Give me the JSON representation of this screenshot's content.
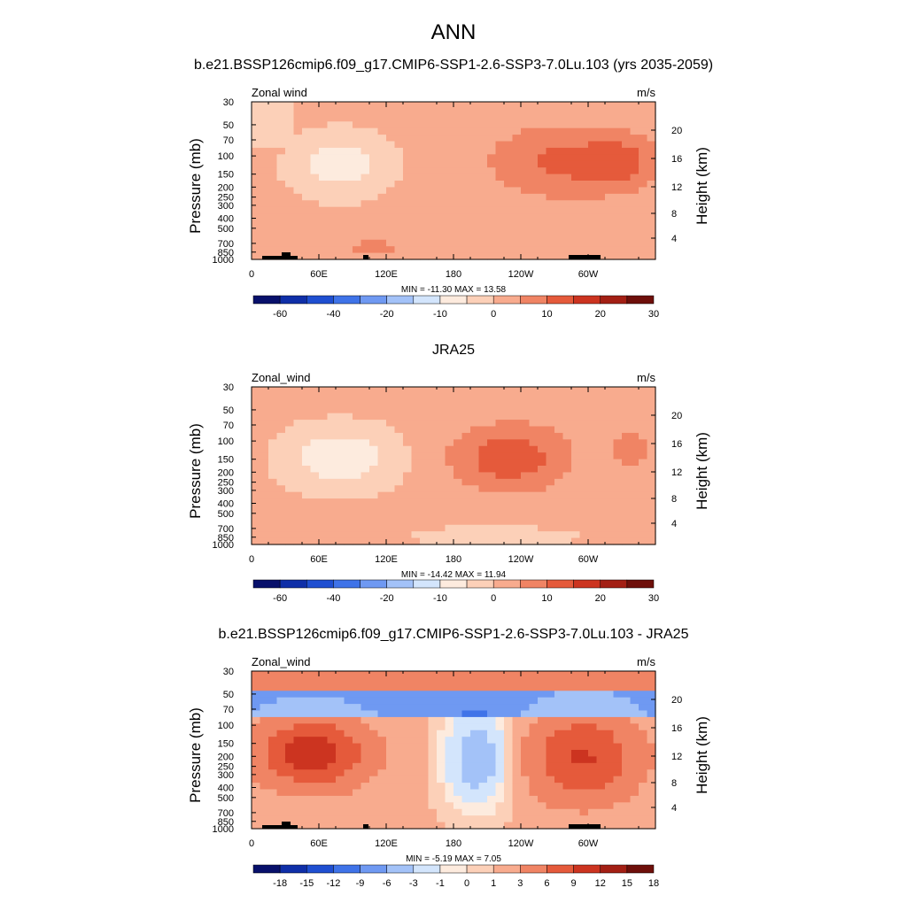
{
  "page": {
    "title": "ANN"
  },
  "colors": {
    "cmap": [
      "#08106b",
      "#0f2fa8",
      "#1f4fd1",
      "#3f73e8",
      "#6f99f2",
      "#a3c2f8",
      "#d3e5fc",
      "#fdebde",
      "#fcd0b8",
      "#f8ab8e",
      "#f08464",
      "#e55a3b",
      "#cc3420",
      "#a31f14",
      "#6e0f0a"
    ],
    "terrain": "#000000"
  },
  "chart_data": [
    {
      "type": "heatmap",
      "title": "b.e21.BSSP126cmip6.f09_g17.CMIP6-SSP1-2.6-SSP3-7.0Lu.103 (yrs 2035-2059)",
      "left_label": "Zonal wind",
      "right_label": "m/s",
      "ylabel": "Pressure (mb)",
      "y2label": "Height (km)",
      "xticks": [
        "0",
        "60E",
        "120E",
        "180",
        "120W",
        "60W"
      ],
      "yticks": [
        "30",
        "50",
        "70",
        "100",
        "150",
        "200",
        "250",
        "300",
        "400",
        "500",
        "700",
        "850",
        "1000"
      ],
      "y2ticks": [
        "20",
        "16",
        "12",
        "8",
        "4"
      ],
      "stats": "MIN = -11.30  MAX =  13.58",
      "levels": [
        "-60",
        "-40",
        "-20",
        "-10",
        "0",
        "10",
        "20",
        "30"
      ],
      "min": -11.3,
      "max": 13.58,
      "terrain": true
    },
    {
      "type": "heatmap",
      "title": "JRA25",
      "left_label": "Zonal_wind",
      "right_label": "m/s",
      "ylabel": "Pressure (mb)",
      "y2label": "Height (km)",
      "xticks": [
        "0",
        "60E",
        "120E",
        "180",
        "120W",
        "60W"
      ],
      "yticks": [
        "30",
        "50",
        "70",
        "100",
        "150",
        "200",
        "250",
        "300",
        "400",
        "500",
        "700",
        "850",
        "1000"
      ],
      "y2ticks": [
        "20",
        "16",
        "12",
        "8",
        "4"
      ],
      "stats": "MIN = -14.42  MAX =  11.94",
      "levels": [
        "-60",
        "-40",
        "-20",
        "-10",
        "0",
        "10",
        "20",
        "30"
      ],
      "min": -14.42,
      "max": 11.94,
      "terrain": false
    },
    {
      "type": "heatmap",
      "title": "b.e21.BSSP126cmip6.f09_g17.CMIP6-SSP1-2.6-SSP3-7.0Lu.103 - JRA25",
      "left_label": "Zonal_wind",
      "right_label": "m/s",
      "ylabel": "Pressure (mb)",
      "y2label": "Height (km)",
      "xticks": [
        "0",
        "60E",
        "120E",
        "180",
        "120W",
        "60W"
      ],
      "yticks": [
        "30",
        "50",
        "70",
        "100",
        "150",
        "200",
        "250",
        "300",
        "400",
        "500",
        "700",
        "850",
        "1000"
      ],
      "y2ticks": [
        "20",
        "16",
        "12",
        "8",
        "4"
      ],
      "stats": "MIN =  -5.19  MAX =   7.05",
      "levels": [
        "-18",
        "-15",
        "-12",
        "-9",
        "-6",
        "-3",
        "-1",
        "0",
        "1",
        "3",
        "6",
        "9",
        "12",
        "15",
        "18"
      ],
      "min": -5.19,
      "max": 7.05,
      "terrain": true
    }
  ]
}
